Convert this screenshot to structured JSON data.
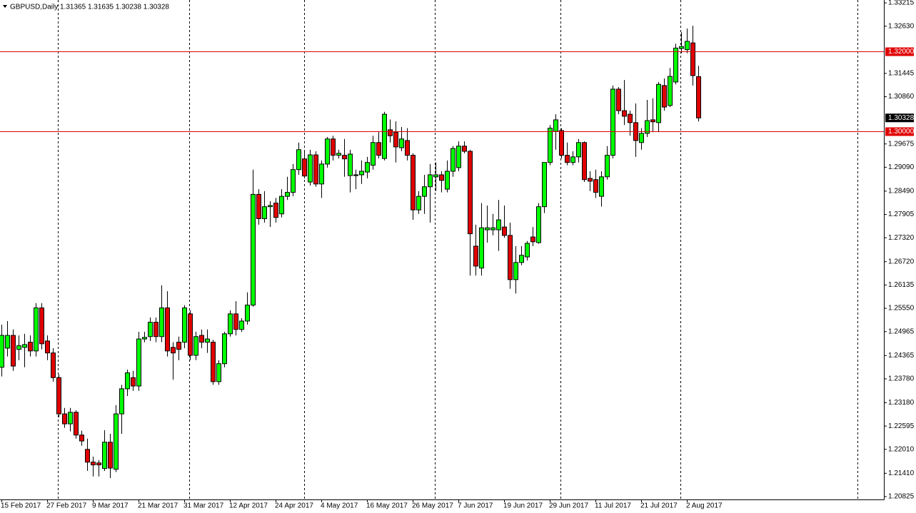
{
  "chart_data": {
    "type": "candlestick",
    "title": "GBPUSD,Daily  1.31365 1.31635 1.30238 1.30328",
    "categories": [
      "15 Feb 2017",
      null,
      null,
      null,
      null,
      null,
      null,
      null,
      "27 Feb 2017",
      null,
      null,
      null,
      null,
      null,
      null,
      null,
      "9 Mar 2017",
      null,
      null,
      null,
      null,
      null,
      null,
      null,
      "21 Mar 2017",
      null,
      null,
      null,
      null,
      null,
      null,
      null,
      "31 Mar 2017",
      null,
      null,
      null,
      null,
      null,
      null,
      null,
      "12 Apr 2017",
      null,
      null,
      null,
      null,
      null,
      null,
      null,
      "24 Apr 2017",
      null,
      null,
      null,
      null,
      null,
      null,
      null,
      "4 May 2017",
      null,
      null,
      null,
      null,
      null,
      null,
      null,
      "16 May 2017",
      null,
      null,
      null,
      null,
      null,
      null,
      null,
      "26 May 2017",
      null,
      null,
      null,
      null,
      null,
      null,
      null,
      "7 Jun 2017",
      null,
      null,
      null,
      null,
      null,
      null,
      null,
      "19 Jun 2017",
      null,
      null,
      null,
      null,
      null,
      null,
      null,
      "29 Jun 2017",
      null,
      null,
      null,
      null,
      null,
      null,
      null,
      "11 Jul 2017",
      null,
      null,
      null,
      null,
      null,
      null,
      null,
      "21 Jul 2017",
      null,
      null,
      null,
      null,
      null,
      null,
      null,
      "2 Aug 2017",
      null,
      null
    ],
    "open": [
      1.2407,
      1.2455,
      1.2487,
      1.2452,
      1.2457,
      1.247,
      1.2448,
      1.2556,
      1.2473,
      1.2443,
      1.2381,
      1.229,
      1.2265,
      1.2294,
      1.2237,
      1.2201,
      1.2169,
      1.2167,
      1.2153,
      1.2219,
      1.2151,
      1.229,
      1.2353,
      1.2381,
      1.236,
      1.2478,
      1.2484,
      1.252,
      1.2484,
      1.2556,
      1.2457,
      1.247,
      1.247,
      1.2541,
      1.2437,
      1.2487,
      1.247,
      1.247,
      1.2371,
      1.2416,
      1.2491,
      1.2541,
      1.2502,
      1.2523,
      1.2563,
      1.2841,
      1.278,
      1.281,
      1.2819,
      1.2792,
      1.2836,
      1.2846,
      1.2903,
      1.293,
      1.2872,
      1.294,
      1.2867,
      1.2917,
      1.298,
      1.2939,
      1.2939,
      1.2888,
      1.2888,
      1.289,
      1.2897,
      1.2914,
      1.2971,
      1.2931,
      1.3003,
      1.2997,
      1.2958,
      1.2976,
      1.2939,
      1.2802,
      1.2836,
      1.286,
      1.2885,
      1.289,
      1.2854,
      1.2899,
      1.2908,
      1.2962,
      1.2949,
      1.2711,
      1.2656,
      1.2752,
      1.2752,
      1.2752,
      1.2759,
      1.2738,
      1.2627,
      1.267,
      1.2684,
      1.2734,
      1.272,
      1.281,
      1.2921,
      1.2999,
      1.3001,
      1.2939,
      1.2921,
      1.2935,
      1.2971,
      1.2881,
      1.2878,
      1.2836,
      1.2885,
      1.2939,
      1.3105,
      1.3051,
      1.3042,
      1.3021,
      1.2971,
      1.2994,
      1.3028,
      1.3021,
      1.3114,
      1.3064,
      1.3123,
      1.3207,
      1.3204,
      1.3221,
      1.31365
    ],
    "high": [
      1.2514,
      1.2523,
      1.2502,
      1.2487,
      1.2491,
      1.2487,
      1.2568,
      1.2568,
      1.2487,
      1.2455,
      1.2389,
      1.2305,
      1.2305,
      1.2299,
      1.2248,
      1.2228,
      1.2183,
      1.2174,
      1.2249,
      1.224,
      1.2312,
      1.2363,
      1.2401,
      1.2398,
      1.2496,
      1.2496,
      1.2532,
      1.2532,
      1.2613,
      1.2598,
      1.247,
      1.2484,
      1.2563,
      1.255,
      1.2496,
      1.2502,
      1.2502,
      1.2476,
      1.2425,
      1.2496,
      1.255,
      1.2573,
      1.253,
      1.2595,
      1.2903,
      1.2854,
      1.2849,
      1.2824,
      1.2832,
      1.2854,
      1.2885,
      1.2917,
      1.2971,
      1.2949,
      1.2953,
      1.2949,
      1.2926,
      1.2985,
      1.2988,
      1.2953,
      1.298,
      1.2953,
      1.2903,
      1.2926,
      1.2935,
      1.2988,
      1.2997,
      1.3048,
      1.3029,
      1.3024,
      1.301,
      1.3007,
      1.2944,
      1.2849,
      1.289,
      1.2917,
      1.2921,
      1.2899,
      1.2926,
      1.2962,
      1.2974,
      1.2974,
      1.2953,
      1.2765,
      1.2819,
      1.2813,
      1.2792,
      1.2827,
      1.2813,
      1.277,
      1.2711,
      1.2711,
      1.2724,
      1.2759,
      1.2819,
      1.2921,
      1.3015,
      1.3042,
      1.3007,
      1.2971,
      1.2949,
      1.298,
      1.2974,
      1.2899,
      1.2903,
      1.2899,
      1.2962,
      1.3114,
      1.311,
      1.3128,
      1.3051,
      1.3069,
      1.3007,
      1.3078,
      1.3082,
      1.3123,
      1.3132,
      1.3158,
      1.3219,
      1.3248,
      1.3257,
      1.3264,
      1.31635
    ],
    "low": [
      1.2384,
      1.2434,
      1.2398,
      1.2425,
      1.2407,
      1.2434,
      1.2434,
      1.2452,
      1.2425,
      1.2371,
      1.2282,
      1.2255,
      1.2246,
      1.2228,
      1.221,
      1.2147,
      1.2133,
      1.2133,
      1.2147,
      1.2129,
      1.2144,
      1.224,
      1.2335,
      1.2348,
      1.2348,
      1.247,
      1.2473,
      1.247,
      1.247,
      1.2434,
      1.2376,
      1.2425,
      1.2455,
      1.2425,
      1.2425,
      1.2455,
      1.2443,
      1.2363,
      1.2363,
      1.2407,
      1.2484,
      1.2487,
      1.2496,
      1.2514,
      1.2559,
      1.2765,
      1.277,
      1.2759,
      1.277,
      1.2783,
      1.2827,
      1.2836,
      1.289,
      1.2881,
      1.2863,
      1.286,
      1.2832,
      1.2908,
      1.2926,
      1.2931,
      1.2885,
      1.2846,
      1.2854,
      1.2867,
      1.2881,
      1.2903,
      1.2931,
      1.2926,
      1.2971,
      1.2921,
      1.2949,
      1.2926,
      1.2777,
      1.2792,
      1.2792,
      1.277,
      1.2849,
      1.2846,
      1.2846,
      1.2885,
      1.2899,
      1.2944,
      1.2637,
      1.2637,
      1.2637,
      1.272,
      1.2738,
      1.2699,
      1.2732,
      1.2604,
      1.2592,
      1.2663,
      1.2675,
      1.2711,
      1.2717,
      1.2794,
      1.2914,
      1.2953,
      1.2931,
      1.2914,
      1.2914,
      1.2921,
      1.2872,
      1.2849,
      1.2832,
      1.281,
      1.2878,
      1.2931,
      1.3042,
      1.3015,
      1.2988,
      1.2935,
      1.2953,
      1.2985,
      1.2997,
      1.2997,
      1.3051,
      1.306,
      1.3117,
      1.3195,
      1.3195,
      1.3114,
      1.30238
    ],
    "close": [
      1.2487,
      1.2487,
      1.241,
      1.2461,
      1.2464,
      1.2448,
      1.2556,
      1.2466,
      1.2443,
      1.2381,
      1.229,
      1.2265,
      1.2294,
      1.2237,
      1.2222,
      1.2169,
      1.2162,
      1.2162,
      1.2219,
      1.2154,
      1.229,
      1.2353,
      1.2393,
      1.236,
      1.2478,
      1.2482,
      1.252,
      1.2484,
      1.2556,
      1.2448,
      1.2443,
      1.2452,
      1.2556,
      1.2437,
      1.2484,
      1.247,
      1.2478,
      1.2371,
      1.2416,
      1.2491,
      1.2541,
      1.2502,
      1.2523,
      1.2563,
      1.2841,
      1.278,
      1.281,
      1.2813,
      1.2783,
      1.2836,
      1.2846,
      1.2903,
      1.2953,
      1.2887,
      1.294,
      1.2867,
      1.2917,
      1.298,
      1.2939,
      1.2944,
      1.293,
      1.2942,
      1.289,
      1.2899,
      1.2921,
      1.2971,
      1.2939,
      1.3042,
      1.2988,
      1.296,
      1.298,
      1.2939,
      1.2802,
      1.2836,
      1.286,
      1.289,
      1.289,
      1.2876,
      1.2899,
      1.2956,
      1.2962,
      1.2949,
      1.2742,
      1.2661,
      1.2757,
      1.2757,
      1.2757,
      1.2777,
      1.2738,
      1.2627,
      1.267,
      1.2688,
      1.2718,
      1.2722,
      1.281,
      1.2921,
      1.3007,
      1.3028,
      1.2939,
      1.2921,
      1.2935,
      1.2971,
      1.2878,
      1.2874,
      1.2846,
      1.2885,
      1.2939,
      1.3105,
      1.3051,
      1.3037,
      1.3021,
      1.2976,
      1.2994,
      1.3026,
      1.3023,
      1.3117,
      1.306,
      1.3137,
      1.3208,
      1.3212,
      1.3225,
      1.3139,
      1.30328
    ],
    "up_color": "#00ff00",
    "down_color": "#e00000",
    "ylim": [
      1.20753,
      1.33287
    ],
    "yticks": [
      {
        "value": 1.33215,
        "label": "1.33215"
      },
      {
        "value": 1.3263,
        "label": "1.32630"
      },
      {
        "value": 1.31445,
        "label": "1.31445"
      },
      {
        "value": 1.3086,
        "label": "1.30860"
      },
      {
        "value": 1.29675,
        "label": "1.29675"
      },
      {
        "value": 1.2909,
        "label": "1.29090"
      },
      {
        "value": 1.2849,
        "label": "1.28490"
      },
      {
        "value": 1.27905,
        "label": "1.27905"
      },
      {
        "value": 1.2732,
        "label": "1.27320"
      },
      {
        "value": 1.2672,
        "label": "1.26720"
      },
      {
        "value": 1.26135,
        "label": "1.26135"
      },
      {
        "value": 1.2555,
        "label": "1.25550"
      },
      {
        "value": 1.24965,
        "label": "1.24965"
      },
      {
        "value": 1.24365,
        "label": "1.24365"
      },
      {
        "value": 1.2378,
        "label": "1.23780"
      },
      {
        "value": 1.2318,
        "label": "1.23180"
      },
      {
        "value": 1.22595,
        "label": "1.22595"
      },
      {
        "value": 1.2201,
        "label": "1.22010"
      },
      {
        "value": 1.2141,
        "label": "1.21410"
      },
      {
        "value": 1.20825,
        "label": "1.20825"
      }
    ],
    "levels": [
      {
        "value": 1.32,
        "label": "1.32000",
        "color": "#e00000"
      },
      {
        "value": 1.3,
        "label": "1.30000",
        "color": "#e00000"
      }
    ],
    "last_price": {
      "value": 1.30328,
      "label": "1.30328"
    }
  }
}
